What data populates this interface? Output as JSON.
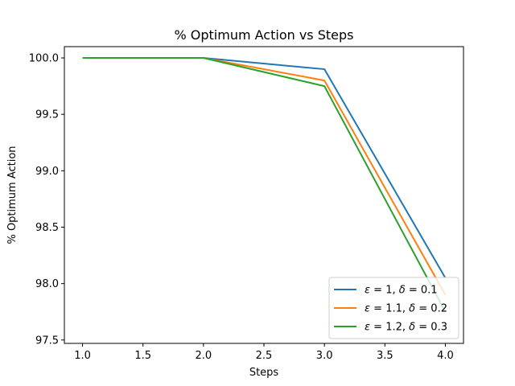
{
  "chart_data": {
    "type": "line",
    "title": "% Optimum Action vs Steps",
    "xlabel": "Steps",
    "ylabel": "% Optimum Action",
    "xlim": [
      0.85,
      4.15
    ],
    "ylim": [
      97.47,
      100.1
    ],
    "xticks": [
      1.0,
      1.5,
      2.0,
      2.5,
      3.0,
      3.5,
      4.0
    ],
    "xtick_labels": [
      "1.0",
      "1.5",
      "2.0",
      "2.5",
      "3.0",
      "3.5",
      "4.0"
    ],
    "yticks": [
      97.5,
      98.0,
      98.5,
      99.0,
      99.5,
      100.0
    ],
    "ytick_labels": [
      "97.5",
      "98.0",
      "98.5",
      "99.0",
      "99.5",
      "100.0"
    ],
    "grid": false,
    "legend_position": "lower-right",
    "x": [
      1,
      2,
      3,
      4
    ],
    "series": [
      {
        "name": "ε = 1, δ = 0.1",
        "eps": "1",
        "delta": "0.1",
        "color": "#1f77b4",
        "values": [
          100.0,
          100.0,
          99.9,
          98.05
        ]
      },
      {
        "name": "ε = 1.1, δ = 0.2",
        "eps": "1.1",
        "delta": "0.2",
        "color": "#ff7f0e",
        "values": [
          100.0,
          100.0,
          99.8,
          97.9
        ]
      },
      {
        "name": "ε = 1.2, δ = 0.3",
        "eps": "1.2",
        "delta": "0.3",
        "color": "#2ca02c",
        "values": [
          100.0,
          100.0,
          99.75,
          97.75
        ]
      }
    ]
  }
}
